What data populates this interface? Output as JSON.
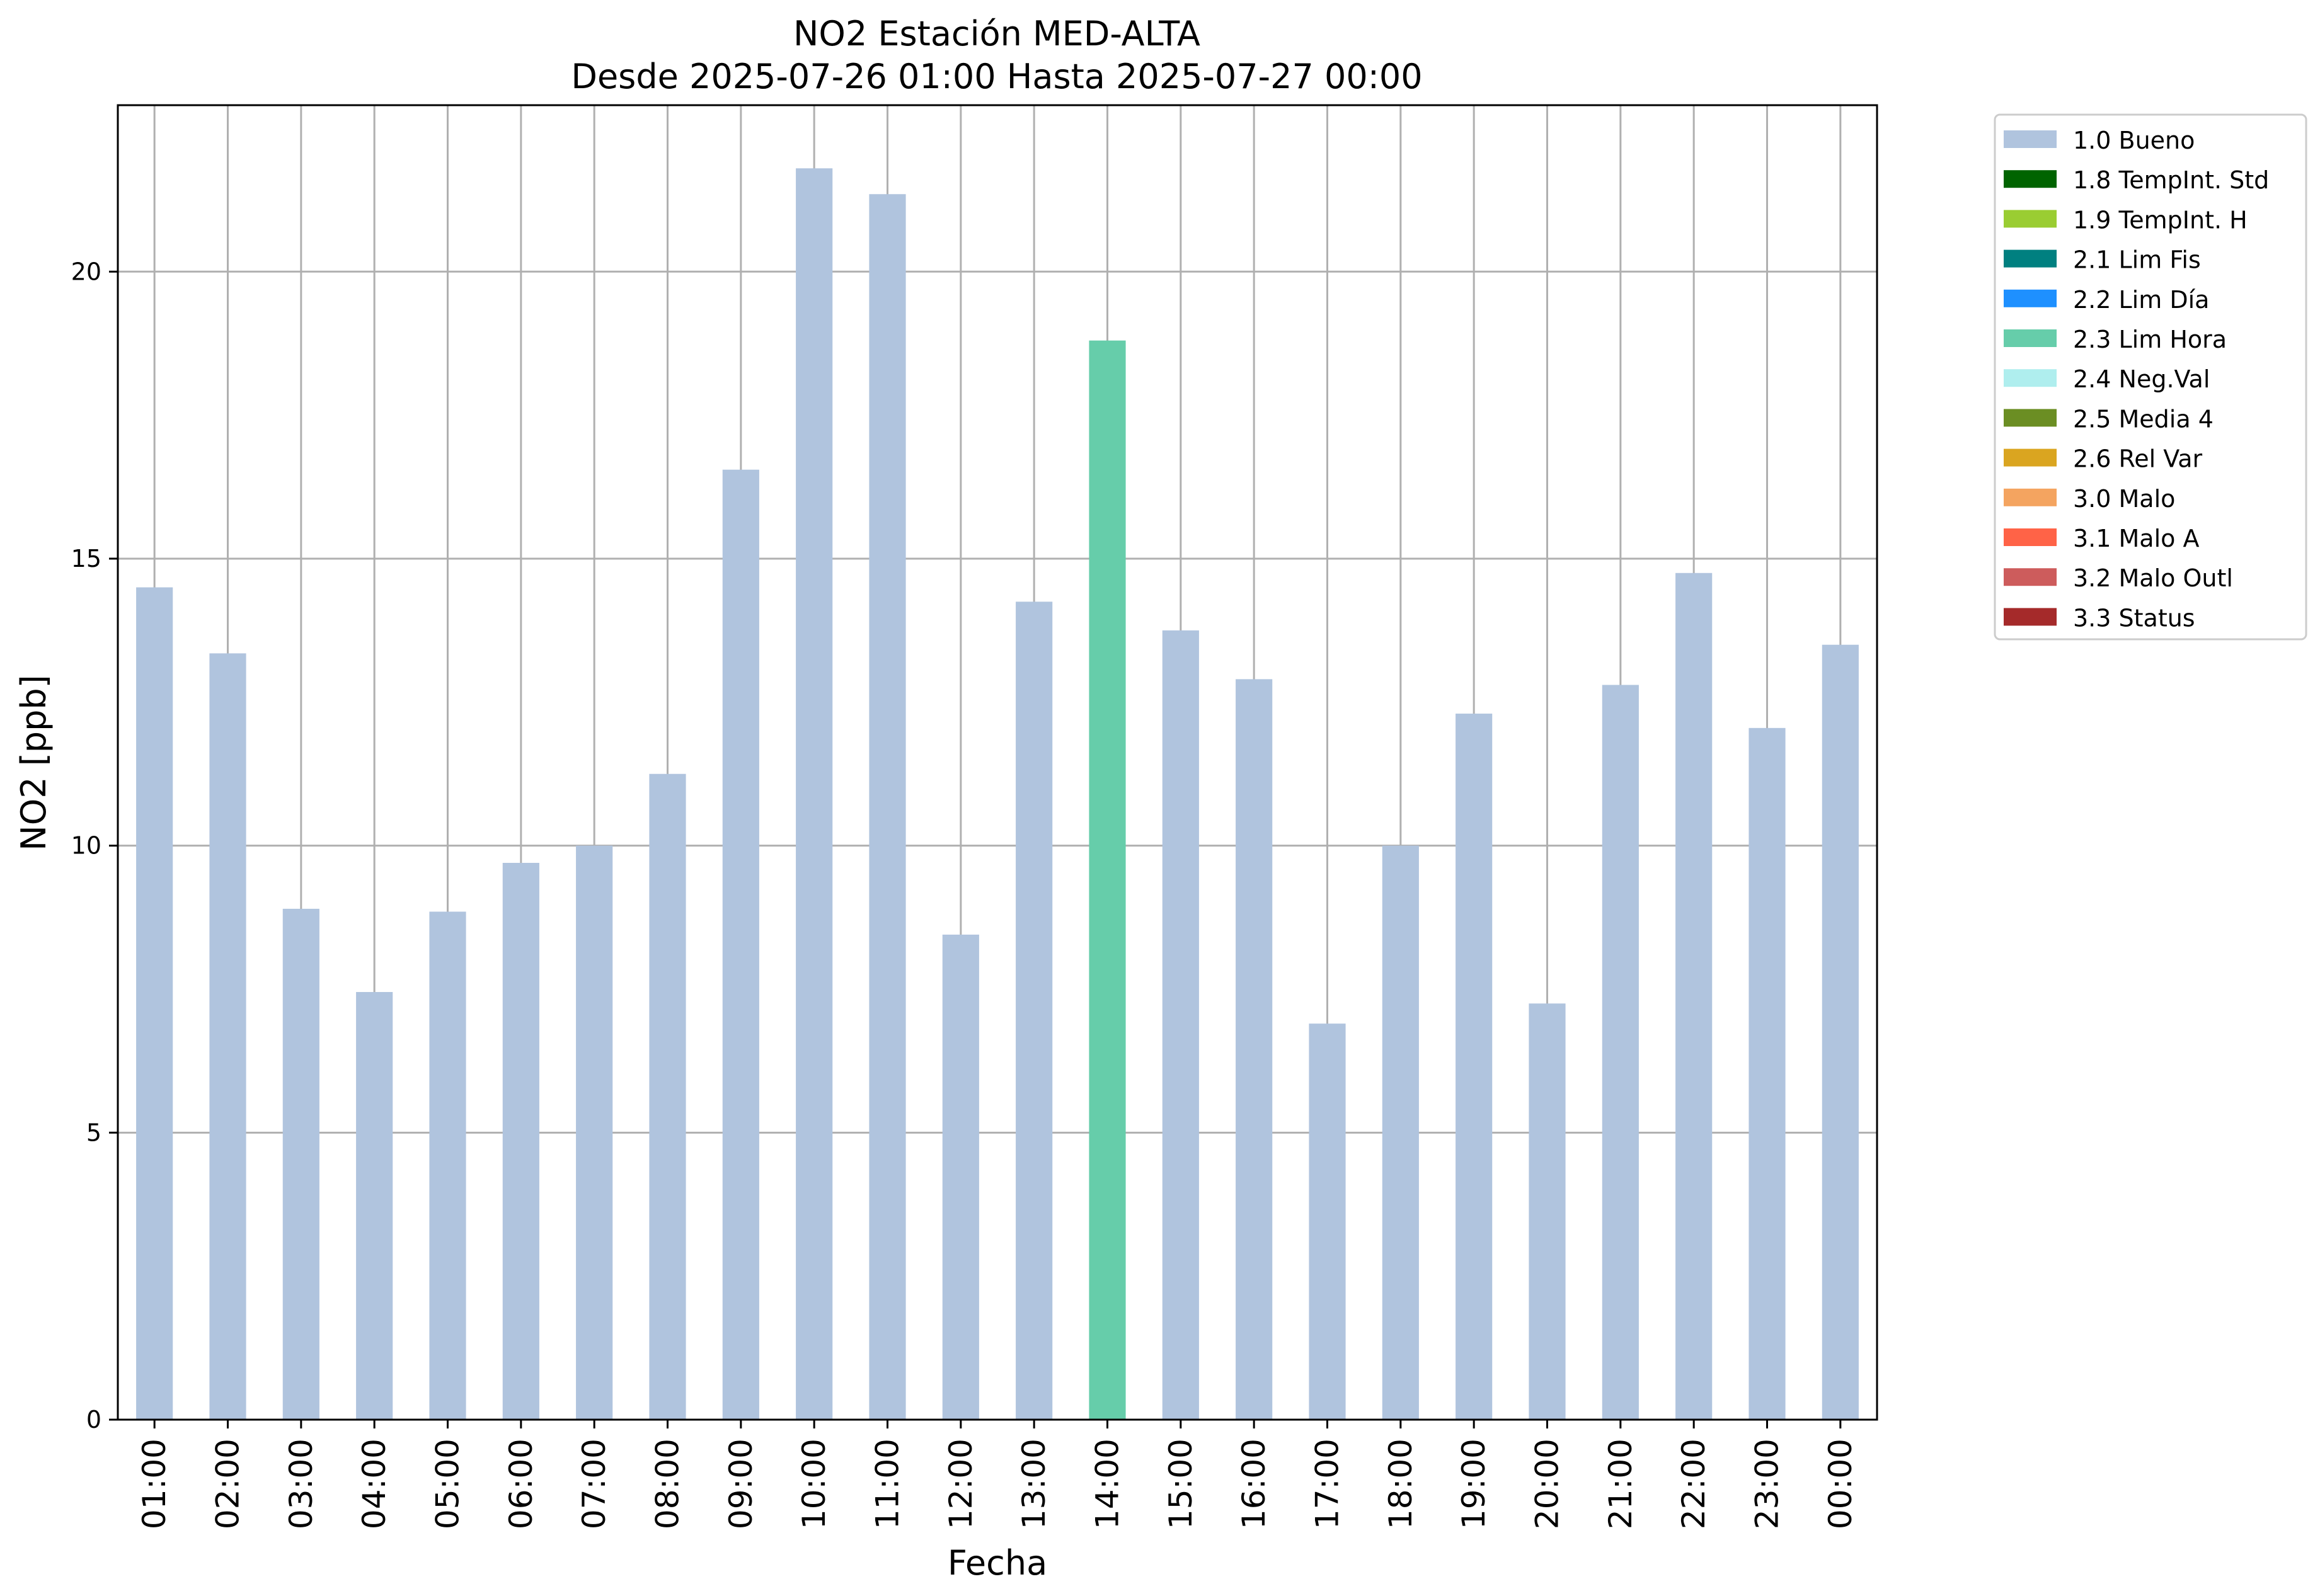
{
  "chart_data": {
    "type": "bar",
    "title": "NO2 Estación MED-ALTA",
    "subtitle": "Desde 2025-07-26 01:00 Hasta 2025-07-27 00:00",
    "xlabel": "Fecha",
    "ylabel": "NO2 [ppb]",
    "ylim": [
      0,
      22.9
    ],
    "yticks": [
      0,
      5,
      10,
      15,
      20
    ],
    "grid": true,
    "legend_position": "outside-top-right",
    "categories": [
      "01:00",
      "02:00",
      "03:00",
      "04:00",
      "05:00",
      "06:00",
      "07:00",
      "08:00",
      "09:00",
      "10:00",
      "11:00",
      "12:00",
      "13:00",
      "14:00",
      "15:00",
      "16:00",
      "17:00",
      "18:00",
      "19:00",
      "20:00",
      "21:00",
      "22:00",
      "23:00",
      "00:00"
    ],
    "values": [
      14.5,
      13.35,
      8.9,
      7.45,
      8.85,
      9.7,
      10.0,
      11.25,
      16.55,
      21.8,
      21.35,
      8.45,
      14.25,
      18.8,
      13.75,
      12.9,
      6.9,
      10.0,
      12.3,
      7.25,
      12.8,
      14.75,
      12.05,
      13.5
    ],
    "flags": [
      "1.0 Bueno",
      "1.0 Bueno",
      "1.0 Bueno",
      "1.0 Bueno",
      "1.0 Bueno",
      "1.0 Bueno",
      "1.0 Bueno",
      "1.0 Bueno",
      "1.0 Bueno",
      "1.0 Bueno",
      "1.0 Bueno",
      "1.0 Bueno",
      "1.0 Bueno",
      "2.3 Lim Hora",
      "1.0 Bueno",
      "1.0 Bueno",
      "1.0 Bueno",
      "1.0 Bueno",
      "1.0 Bueno",
      "1.0 Bueno",
      "1.0 Bueno",
      "1.0 Bueno",
      "1.0 Bueno",
      "1.0 Bueno"
    ],
    "legend": [
      {
        "label": "1.0 Bueno",
        "color": "#b0c4de"
      },
      {
        "label": "1.8 TempInt. Std",
        "color": "#006400"
      },
      {
        "label": "1.9 TempInt. H",
        "color": "#9acd32"
      },
      {
        "label": "2.1 Lim Fis",
        "color": "#008080"
      },
      {
        "label": "2.2 Lim Día",
        "color": "#1e90ff"
      },
      {
        "label": "2.3 Lim Hora",
        "color": "#66cdaa"
      },
      {
        "label": "2.4 Neg.Val",
        "color": "#afeeee"
      },
      {
        "label": "2.5 Media 4",
        "color": "#6b8e23"
      },
      {
        "label": "2.6 Rel Var",
        "color": "#daa520"
      },
      {
        "label": "3.0 Malo",
        "color": "#f4a460"
      },
      {
        "label": "3.1 Malo A",
        "color": "#ff6347"
      },
      {
        "label": "3.2 Malo Outl",
        "color": "#cd5c5c"
      },
      {
        "label": "3.3 Status",
        "color": "#a52a2a"
      }
    ]
  }
}
